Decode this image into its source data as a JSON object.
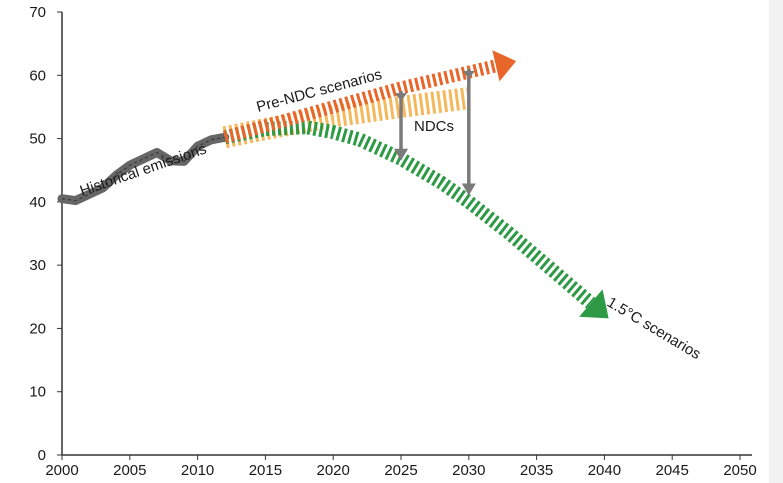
{
  "chart_data": {
    "type": "line",
    "xlim": [
      2000,
      2050
    ],
    "ylim": [
      0,
      70
    ],
    "x_ticks": [
      "2000",
      "2005",
      "2010",
      "2015",
      "2020",
      "2025",
      "2030",
      "2035",
      "2040",
      "2045",
      "2050"
    ],
    "y_ticks": [
      "0",
      "10",
      "20",
      "30",
      "40",
      "50",
      "60",
      "70"
    ],
    "grid": false,
    "series": [
      {
        "name": "Historical emissions",
        "color": "#666666",
        "x": [
          2000,
          2001,
          2002,
          2003,
          2004,
          2005,
          2006,
          2007,
          2008,
          2009,
          2010,
          2011,
          2012
        ],
        "y": [
          40.5,
          40.2,
          41.2,
          42.2,
          44.2,
          45.8,
          46.8,
          47.8,
          46.5,
          46.4,
          48.8,
          49.8,
          50.2
        ]
      },
      {
        "name": "Pre-NDC scenarios",
        "color": "#E8662A",
        "x": [
          2012,
          2015,
          2020,
          2025,
          2030,
          2032
        ],
        "y": [
          50.2,
          52.0,
          55.0,
          58.0,
          60.5,
          61.5
        ]
      },
      {
        "name": "NDCs",
        "color": "#F5B85C",
        "x": [
          2012,
          2015,
          2020,
          2025,
          2030
        ],
        "y": [
          50.2,
          51.5,
          53.5,
          55.0,
          56.4
        ]
      },
      {
        "name": "1.5°C scenarios",
        "color": "#2E9A45",
        "x": [
          2012,
          2015,
          2018,
          2020,
          2022,
          2025,
          2028,
          2030,
          2033,
          2036,
          2039
        ],
        "y": [
          50.2,
          51.5,
          51.8,
          51.0,
          49.8,
          46.8,
          43.0,
          40.0,
          35.0,
          29.5,
          24.0
        ]
      }
    ],
    "reduction_arrows": [
      {
        "x": 2025,
        "from": 57.5,
        "to": 46.5
      },
      {
        "x": 2030,
        "from": 61.0,
        "to": 41.0
      }
    ],
    "annotations": [
      {
        "text": "Historical emissions"
      },
      {
        "text": "Pre-NDC scenarios"
      },
      {
        "text": "NDCs"
      },
      {
        "text": "1.5°C scenarios"
      }
    ]
  }
}
